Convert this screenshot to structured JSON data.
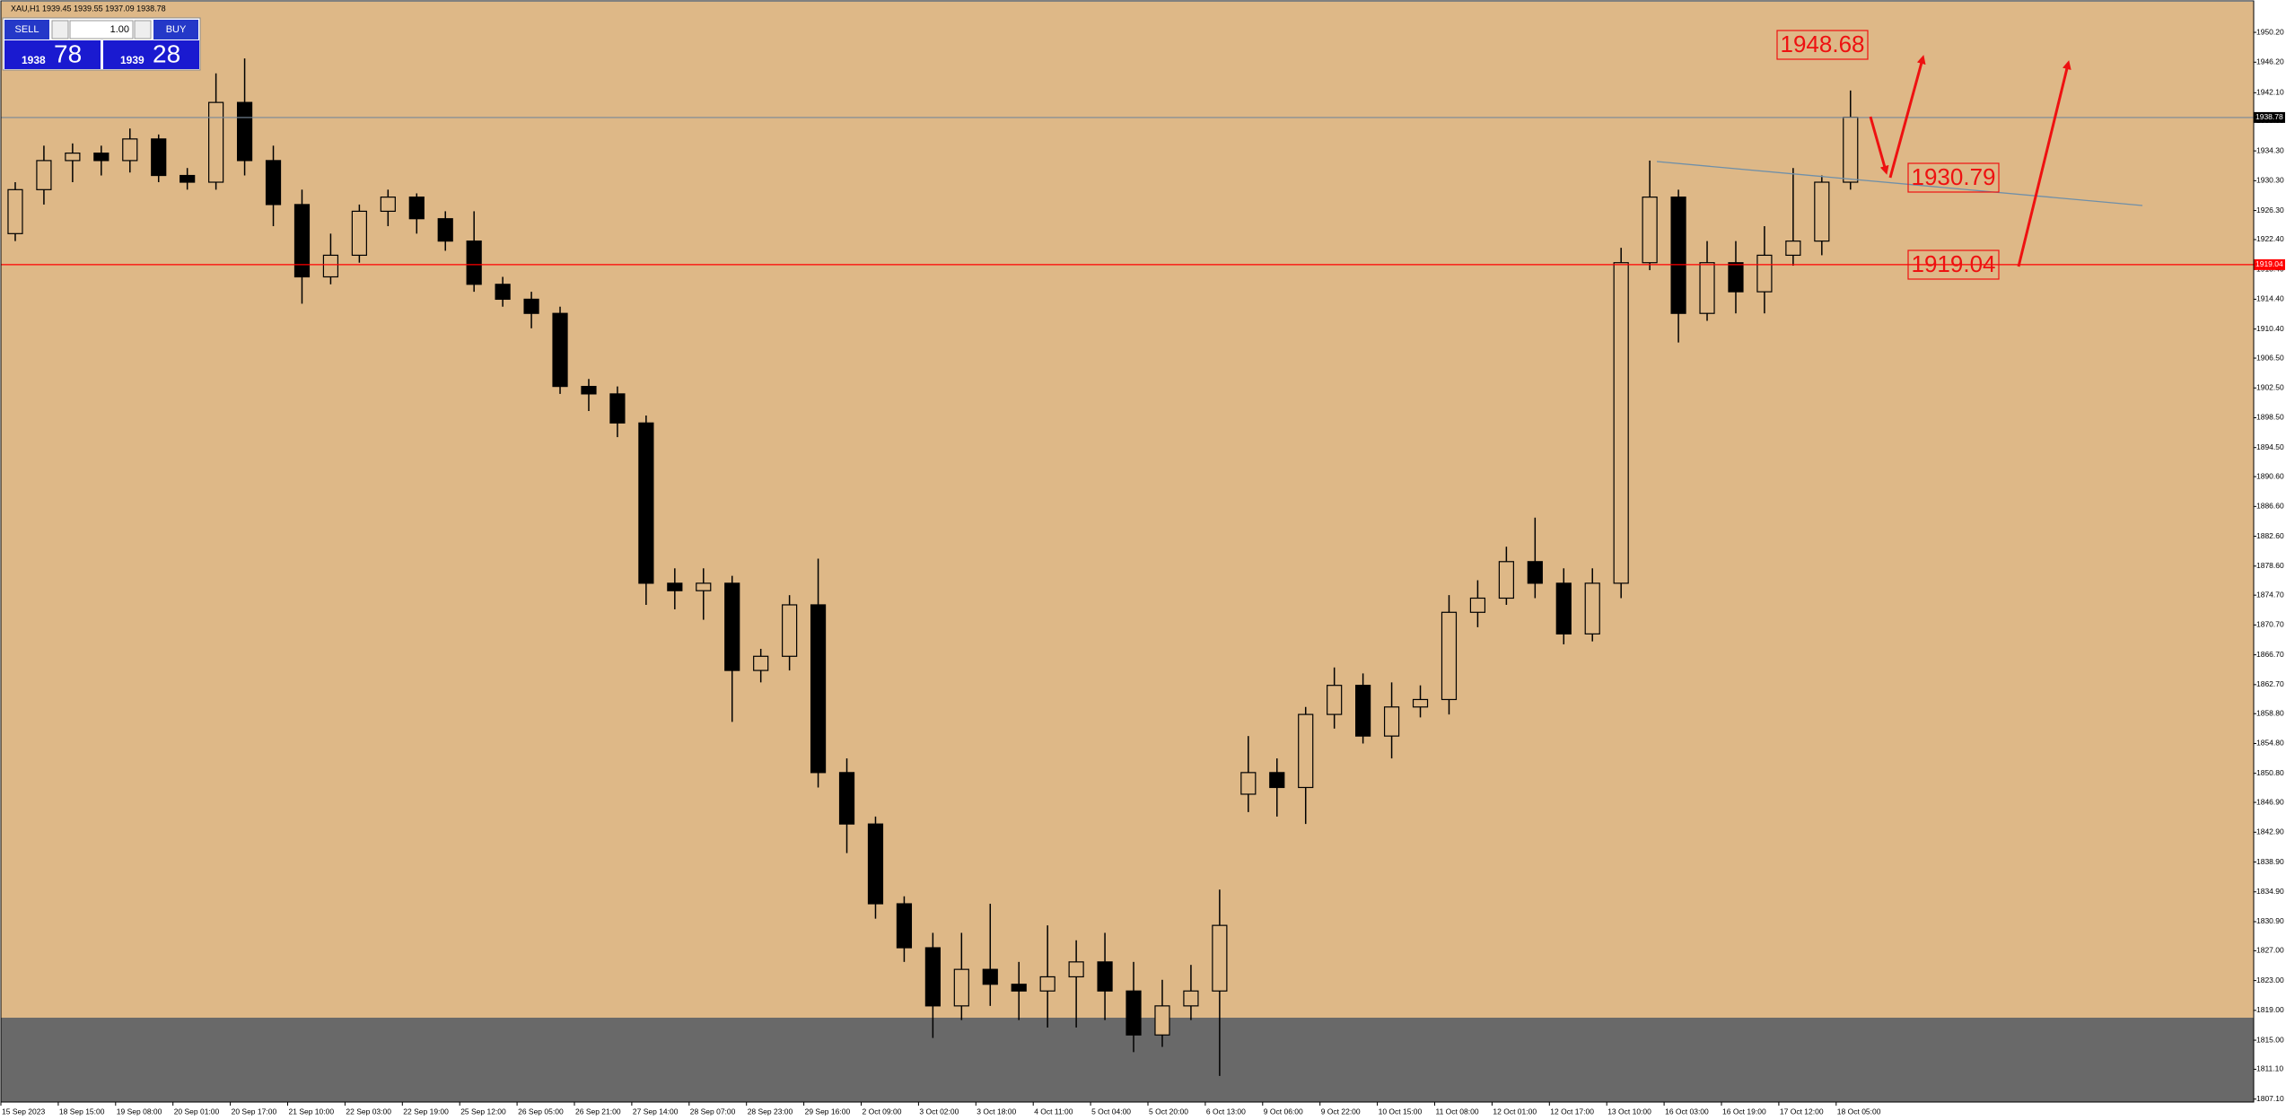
{
  "chart_data": {
    "type": "candlestick",
    "title": "XAU,H1 1939.45 1939.55 1937.09 1938.78",
    "categories": [
      "15 Sep 2023",
      null,
      "18 Sep 15:00",
      null,
      "19 Sep 08:00",
      null,
      "20 Sep 01:00",
      null,
      "20 Sep 17:00",
      null,
      "21 Sep 10:00",
      null,
      "22 Sep 03:00",
      null,
      "22 Sep 19:00",
      null,
      "25 Sep 12:00",
      null,
      "26 Sep 05:00",
      null,
      "26 Sep 21:00",
      null,
      "27 Sep 14:00",
      null,
      "28 Sep 07:00",
      null,
      "28 Sep 23:00",
      null,
      "29 Sep 16:00",
      null,
      "2 Oct 09:00",
      null,
      "3 Oct 02:00",
      null,
      "3 Oct 18:00",
      null,
      "4 Oct 11:00",
      null,
      "5 Oct 04:00",
      null,
      "5 Oct 20:00",
      null,
      "6 Oct 13:00",
      null,
      "9 Oct 06:00",
      null,
      "9 Oct 22:00",
      null,
      "10 Oct 15:00",
      null,
      "11 Oct 08:00",
      null,
      "12 Oct 01:00",
      null,
      "12 Oct 17:00",
      null,
      "13 Oct 10:00",
      null,
      "16 Oct 03:00",
      null,
      "16 Oct 19:00",
      null,
      "17 Oct 12:00",
      null,
      "18 Oct 05:00"
    ],
    "open": [
      1923.2,
      1929.1,
      1933.0,
      1934.0,
      1933.0,
      1935.9,
      1931.0,
      1930.1,
      1940.8,
      1933.0,
      1927.1,
      1917.4,
      1920.3,
      1926.2,
      1928.1,
      1925.2,
      1922.2,
      1916.4,
      1914.4,
      1912.5,
      1902.7,
      1901.7,
      1897.8,
      1876.3,
      1875.3,
      1876.3,
      1864.6,
      1866.5,
      1873.4,
      1850.9,
      1844.0,
      1833.3,
      1827.4,
      1819.6,
      1824.5,
      1822.5,
      1821.6,
      1823.5,
      1825.5,
      1821.6,
      1815.7,
      1819.6,
      1821.6,
      1848.0,
      1850.9,
      1848.9,
      1858.7,
      1862.6,
      1855.8,
      1859.7,
      1860.7,
      1872.4,
      1874.3,
      1879.2,
      1876.3,
      1869.5,
      1876.3,
      1919.3,
      1928.1,
      1912.5,
      1919.3,
      1915.4,
      1920.3,
      1922.2,
      1930.1
    ],
    "high": [
      1930.1,
      1935.0,
      1935.3,
      1935.0,
      1937.3,
      1936.5,
      1932.0,
      1944.7,
      1946.7,
      1935.0,
      1929.1,
      1923.2,
      1927.1,
      1929.1,
      1928.6,
      1926.2,
      1926.2,
      1917.4,
      1915.4,
      1913.4,
      1903.7,
      1902.7,
      1898.8,
      1878.3,
      1878.3,
      1877.3,
      1867.5,
      1874.7,
      1879.6,
      1852.8,
      1845.0,
      1834.3,
      1829.4,
      1829.4,
      1833.3,
      1825.5,
      1830.4,
      1828.4,
      1829.4,
      1825.5,
      1823.1,
      1825.1,
      1835.2,
      1855.8,
      1852.8,
      1859.7,
      1865.0,
      1864.2,
      1863.0,
      1862.6,
      1874.7,
      1876.7,
      1881.2,
      1885.1,
      1878.3,
      1878.3,
      1921.3,
      1933.0,
      1929.1,
      1922.2,
      1922.2,
      1924.2,
      1932.0,
      1931.0,
      1942.4
    ],
    "low": [
      1922.2,
      1927.1,
      1930.1,
      1931.0,
      1931.4,
      1930.1,
      1929.1,
      1929.1,
      1931.0,
      1924.2,
      1913.8,
      1916.4,
      1919.3,
      1924.2,
      1923.2,
      1920.9,
      1915.4,
      1913.4,
      1910.5,
      1901.7,
      1899.4,
      1895.9,
      1873.4,
      1872.8,
      1871.4,
      1857.7,
      1863.0,
      1864.6,
      1848.9,
      1840.1,
      1831.3,
      1825.5,
      1815.3,
      1817.7,
      1819.6,
      1817.7,
      1816.7,
      1816.7,
      1817.7,
      1813.4,
      1814.1,
      1817.7,
      1810.2,
      1845.6,
      1845.0,
      1844.0,
      1856.8,
      1854.8,
      1852.8,
      1858.3,
      1858.7,
      1870.4,
      1873.4,
      1874.3,
      1868.1,
      1868.5,
      1874.3,
      1918.3,
      1908.6,
      1911.5,
      1912.5,
      1912.5,
      1918.9,
      1920.3,
      1929.1
    ],
    "close": [
      1929.1,
      1933.0,
      1934.0,
      1933.0,
      1935.9,
      1931.0,
      1930.1,
      1940.8,
      1933.0,
      1927.1,
      1917.4,
      1920.3,
      1926.2,
      1928.1,
      1925.2,
      1922.2,
      1916.4,
      1914.4,
      1912.5,
      1902.7,
      1901.7,
      1897.8,
      1876.3,
      1875.3,
      1876.3,
      1864.6,
      1866.5,
      1873.4,
      1850.9,
      1844.0,
      1833.3,
      1827.4,
      1819.6,
      1824.5,
      1822.5,
      1821.6,
      1823.5,
      1825.5,
      1821.6,
      1815.7,
      1819.6,
      1821.6,
      1830.4,
      1850.9,
      1848.9,
      1858.7,
      1862.6,
      1855.8,
      1859.7,
      1860.7,
      1872.4,
      1874.3,
      1879.2,
      1876.3,
      1869.5,
      1876.3,
      1919.3,
      1928.1,
      1912.5,
      1919.3,
      1915.4,
      1920.3,
      1922.2,
      1930.1,
      1938.8
    ],
    "ylim": [
      1806.7,
      1954.3
    ],
    "yticks": [
      {
        "value": 1950.2,
        "label": "1950.20"
      },
      {
        "value": 1946.2,
        "label": "1946.20"
      },
      {
        "value": 1942.1,
        "label": "1942.10"
      },
      {
        "value": 1938.3,
        "label": "1938.30"
      },
      {
        "value": 1934.3,
        "label": "1934.30"
      },
      {
        "value": 1930.3,
        "label": "1930.30"
      },
      {
        "value": 1926.3,
        "label": "1926.30"
      },
      {
        "value": 1922.4,
        "label": "1922.40"
      },
      {
        "value": 1918.4,
        "label": "1918.40"
      },
      {
        "value": 1914.4,
        "label": "1914.40"
      },
      {
        "value": 1910.4,
        "label": "1910.40"
      },
      {
        "value": 1906.5,
        "label": "1906.50"
      },
      {
        "value": 1902.5,
        "label": "1902.50"
      },
      {
        "value": 1898.5,
        "label": "1898.50"
      },
      {
        "value": 1894.5,
        "label": "1894.50"
      },
      {
        "value": 1890.6,
        "label": "1890.60"
      },
      {
        "value": 1886.6,
        "label": "1886.60"
      },
      {
        "value": 1882.6,
        "label": "1882.60"
      },
      {
        "value": 1878.6,
        "label": "1878.60"
      },
      {
        "value": 1874.7,
        "label": "1874.70"
      },
      {
        "value": 1870.7,
        "label": "1870.70"
      },
      {
        "value": 1866.7,
        "label": "1866.70"
      },
      {
        "value": 1862.7,
        "label": "1862.70"
      },
      {
        "value": 1858.8,
        "label": "1858.80"
      },
      {
        "value": 1854.8,
        "label": "1854.80"
      },
      {
        "value": 1850.8,
        "label": "1850.80"
      },
      {
        "value": 1846.9,
        "label": "1846.90"
      },
      {
        "value": 1842.9,
        "label": "1842.90"
      },
      {
        "value": 1838.9,
        "label": "1838.90"
      },
      {
        "value": 1834.9,
        "label": "1834.90"
      },
      {
        "value": 1830.9,
        "label": "1830.90"
      },
      {
        "value": 1827,
        "label": "1827.00"
      },
      {
        "value": 1823,
        "label": "1823.00"
      },
      {
        "value": 1819,
        "label": "1819.00"
      },
      {
        "value": 1815,
        "label": "1815.00"
      },
      {
        "value": 1811.1,
        "label": "1811.10"
      },
      {
        "value": 1807.1,
        "label": "1807.10"
      }
    ],
    "hlines": [
      {
        "value": 1938.78,
        "label": "1938.78",
        "color": "#778899"
      },
      {
        "value": 1919.04,
        "label": "1919.04",
        "color": "#ff0000"
      }
    ],
    "annotations": [
      "1948.68",
      "1930.79",
      "1919.04"
    ],
    "background": "#deb887",
    "candle_color": "#000000"
  },
  "trade_panel": {
    "sell": "SELL",
    "buy": "BUY",
    "lots": "1.00",
    "sell_big": "1938",
    "sell_pips": "78",
    "buy_big": "1939",
    "buy_pips": "28"
  }
}
